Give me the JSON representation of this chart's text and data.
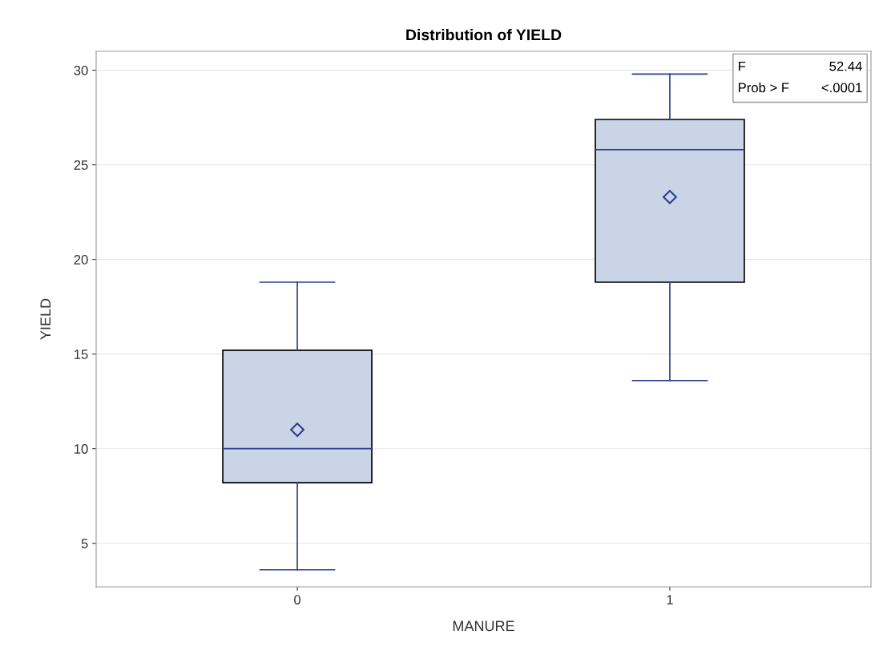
{
  "chart_data": {
    "type": "box",
    "title": "Distribution of YIELD",
    "xlabel": "MANURE",
    "ylabel": "YIELD",
    "categories": [
      "0",
      "1"
    ],
    "series": [
      {
        "color": "#c9d5e6",
        "boxes": [
          {
            "low": 3.6,
            "q1": 8.2,
            "median": 10.0,
            "q3": 15.2,
            "high": 18.8,
            "mean": 11.0
          },
          {
            "low": 13.6,
            "q1": 18.8,
            "median": 25.8,
            "q3": 27.4,
            "high": 29.8,
            "mean": 23.3
          }
        ]
      }
    ],
    "ylim": [
      2.7,
      31.0
    ],
    "yticks": [
      5,
      10,
      15,
      20,
      25,
      30
    ],
    "grid": "y",
    "legend": false,
    "annotations": [
      "F",
      "52.44",
      "Prob > F",
      "<.0001"
    ]
  }
}
